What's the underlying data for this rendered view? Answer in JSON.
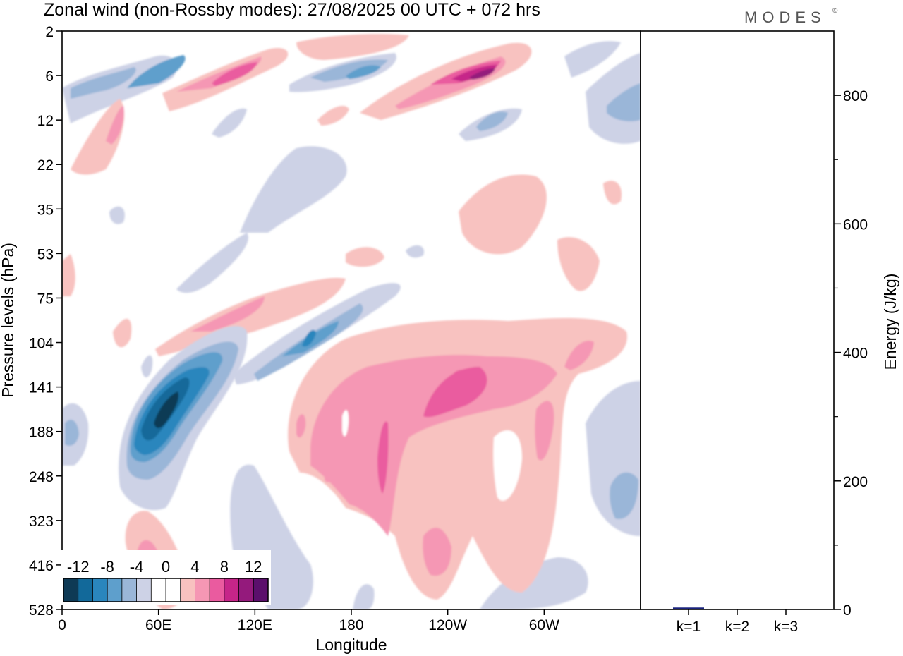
{
  "header": {
    "title": "Zonal wind (non-Rossby modes):  27/08/2025  00 UTC  + 072 hrs",
    "brand": "MODES",
    "brand_mark": "©"
  },
  "chart_data": [
    {
      "type": "heatmap",
      "title": "Zonal wind (non-Rossby modes):  27/08/2025  00 UTC  + 072 hrs",
      "xlabel": "Longitude",
      "ylabel": "Pressure levels (hPa)",
      "x_ticks": [
        {
          "label": "0",
          "lon": 0
        },
        {
          "label": "60E",
          "lon": 60
        },
        {
          "label": "120E",
          "lon": 120
        },
        {
          "label": "180",
          "lon": 180
        },
        {
          "label": "120W",
          "lon": 240
        },
        {
          "label": "60W",
          "lon": 300
        }
      ],
      "xlim": [
        0,
        360
      ],
      "y_ticks": [
        "2",
        "6",
        "12",
        "22",
        "35",
        "53",
        "75",
        "104",
        "141",
        "188",
        "248",
        "323",
        "416",
        "528"
      ],
      "colorbar": {
        "labels": [
          "-12",
          "-8",
          "-4",
          "0",
          "4",
          "8",
          "12"
        ],
        "colors": [
          "#0e3a55",
          "#12699a",
          "#2a86bd",
          "#5e9fcc",
          "#9ab6d8",
          "#cdd2e6",
          "#ffffff",
          "#ffffff",
          "#f8c2c0",
          "#f597b4",
          "#ea5b9f",
          "#c62589",
          "#941a7c",
          "#5b0f6c"
        ]
      },
      "features": [
        {
          "name": "negative-jet-core",
          "value": -12,
          "lon": 55,
          "level": "141-188"
        },
        {
          "name": "negative-band",
          "value": -8,
          "lon": "30-130",
          "level": "104-248"
        },
        {
          "name": "positive-upper-max",
          "value": 12,
          "lon": 255,
          "level": "6"
        },
        {
          "name": "positive-mid-broad",
          "value": 6,
          "lon": "140-300",
          "level": "104-416"
        }
      ]
    },
    {
      "type": "bar",
      "categories": [
        "k=1",
        "k=2",
        "k=3"
      ],
      "values": [
        3,
        1,
        0.6
      ],
      "ylabel": "Energy (J/kg)",
      "ylim": [
        0,
        900
      ],
      "y_ticks": [
        0,
        200,
        400,
        600,
        800
      ],
      "bar_color": "#1a237e"
    }
  ]
}
